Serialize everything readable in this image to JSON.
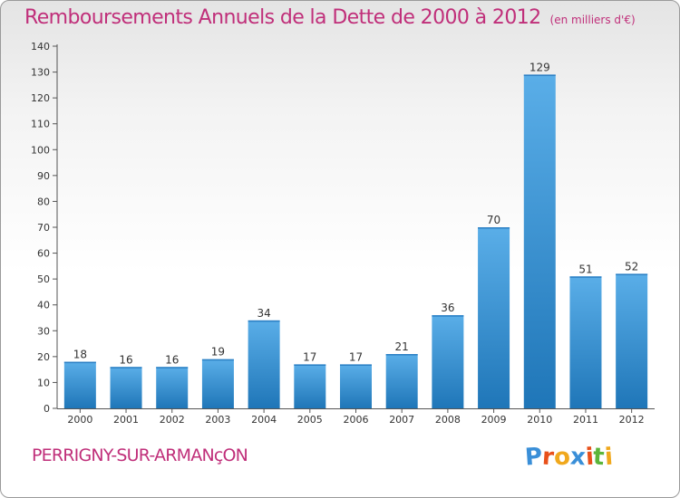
{
  "header": {
    "title": "Remboursements Annuels de la Dette de 2000 à 2012",
    "subtitle": "(en milliers d'€)"
  },
  "footer": {
    "commune": "PERRIGNY-SUR-ARMANçON",
    "brand": "Proxiti"
  },
  "colors": {
    "title": "#c02f7a",
    "bar_light": "#5aaee8",
    "bar_dark": "#1f76b8",
    "logo_letters": [
      "#3a8fd8",
      "#e8501a",
      "#f0a81c",
      "#3a8fd8",
      "#e8501a",
      "#5bb53a",
      "#f0a81c"
    ]
  },
  "chart_data": {
    "type": "bar",
    "title": "Remboursements Annuels de la Dette de 2000 à 2012",
    "subtitle": "(en milliers d'€)",
    "categories": [
      "2000",
      "2001",
      "2002",
      "2003",
      "2004",
      "2005",
      "2006",
      "2007",
      "2008",
      "2009",
      "2010",
      "2011",
      "2012"
    ],
    "values": [
      18,
      16,
      16,
      19,
      34,
      17,
      17,
      21,
      36,
      70,
      129,
      51,
      52
    ],
    "ylim": [
      0,
      140
    ],
    "yticks": [
      0,
      10,
      20,
      30,
      40,
      50,
      60,
      70,
      80,
      90,
      100,
      110,
      120,
      130,
      140
    ],
    "xlabel": "",
    "ylabel": "",
    "grid": false,
    "data_labels": true
  }
}
